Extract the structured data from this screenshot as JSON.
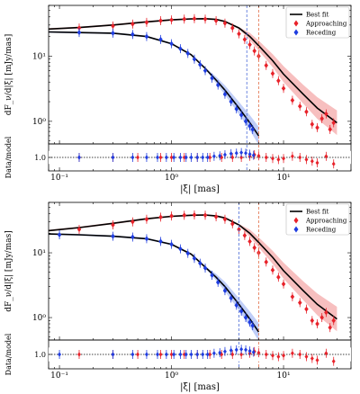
{
  "chart_data": [
    {
      "type": "scatter",
      "panel": "top",
      "xscale": "log",
      "yscale": "log",
      "xlim": [
        0.08,
        40
      ],
      "ylim": [
        0.45,
        60
      ],
      "ratio_ylim": [
        0.75,
        1.25
      ],
      "xlabel": "|ξ| [mas]",
      "ylabel": "dF_ν/d|ξ| [mJy/mas]",
      "ratio_ylabel": "Data/model",
      "x_ticks": [
        "10⁻¹",
        "10⁰",
        "10¹"
      ],
      "y_ticks": [
        "10⁰",
        "10¹"
      ],
      "ratio_ticks": [
        "1.0"
      ],
      "legend": {
        "position": "top-right",
        "entries": [
          "Best fit",
          "Approaching",
          "Receding"
        ]
      },
      "vlines": [
        {
          "x": 4.7,
          "color": "#4b6bd6",
          "style": "dashed"
        },
        {
          "x": 6.0,
          "color": "#e2704a",
          "style": "dashed"
        }
      ],
      "colors": {
        "best_fit": "#000000",
        "approaching": "#e8222a",
        "receding": "#1f3de0",
        "band_red": "#f08a8a",
        "band_blue": "#8da6f2"
      },
      "series": [
        {
          "name": "Approaching",
          "x": [
            0.15,
            0.3,
            0.45,
            0.6,
            0.8,
            1.0,
            1.3,
            1.6,
            2.0,
            2.5,
            3.0,
            3.5,
            4.0,
            4.5,
            5.0,
            5.5,
            6.0,
            7.0,
            8.0,
            9.0,
            10.0,
            12.0,
            14.0,
            16.0,
            18.0,
            20.0,
            22.0,
            24.0,
            26.0,
            28.0
          ],
          "y": [
            27.0,
            29.0,
            31.0,
            33.0,
            35.0,
            36.0,
            37.0,
            37.5,
            37.0,
            35.0,
            32.0,
            27.0,
            22.0,
            18.0,
            15.0,
            12.0,
            10.0,
            7.2,
            5.4,
            4.2,
            3.2,
            2.1,
            1.7,
            1.4,
            0.9,
            0.8,
            1.1,
            1.3,
            0.75,
            0.95
          ]
        },
        {
          "name": "Receding",
          "x": [
            0.15,
            0.3,
            0.45,
            0.6,
            0.8,
            1.0,
            1.2,
            1.4,
            1.6,
            1.8,
            2.0,
            2.3,
            2.6,
            3.0,
            3.4,
            3.8,
            4.2,
            4.6,
            5.0,
            5.3
          ],
          "y": [
            23.0,
            22.5,
            21.5,
            20.0,
            18.0,
            15.5,
            13.0,
            11.0,
            9.0,
            7.4,
            6.0,
            4.6,
            3.6,
            2.6,
            2.0,
            1.55,
            1.25,
            1.0,
            0.85,
            0.75
          ]
        },
        {
          "name": "Best fit (approaching)",
          "x": [
            0.08,
            0.15,
            0.3,
            0.6,
            1.0,
            1.5,
            2.0,
            2.5,
            3.0,
            4.0,
            5.0,
            6.0,
            8.0,
            10.0,
            15.0,
            20.0,
            30.0
          ],
          "y": [
            26.0,
            27.5,
            30.0,
            33.5,
            36.0,
            37.3,
            37.5,
            36.5,
            34.0,
            27.0,
            20.0,
            14.5,
            8.5,
            5.3,
            2.6,
            1.6,
            0.95
          ]
        },
        {
          "name": "Best fit (receding)",
          "x": [
            0.08,
            0.15,
            0.3,
            0.6,
            1.0,
            1.5,
            2.0,
            2.5,
            3.0,
            4.0,
            5.0,
            6.0
          ],
          "y": [
            23.5,
            23.0,
            22.5,
            20.0,
            15.5,
            10.5,
            6.5,
            4.3,
            3.0,
            1.6,
            0.95,
            0.6
          ]
        }
      ],
      "ratio": [
        {
          "name": "Approaching",
          "x": [
            0.15,
            0.3,
            0.5,
            0.8,
            1.0,
            1.3,
            1.7,
            2.2,
            2.8,
            3.5,
            4.2,
            5.0,
            5.5,
            6.0,
            7.0,
            8.0,
            9.0,
            10.0,
            12.0,
            14.0,
            16.0,
            18.0,
            20.0,
            24.0,
            28.0
          ],
          "y": [
            1.0,
            1.0,
            1.0,
            1.0,
            1.0,
            1.0,
            1.0,
            1.0,
            1.0,
            1.0,
            1.0,
            1.02,
            1.05,
            1.03,
            1.0,
            0.98,
            0.96,
            0.98,
            1.02,
            1.0,
            0.96,
            0.93,
            0.9,
            1.02,
            0.88
          ]
        },
        {
          "name": "Receding",
          "x": [
            0.15,
            0.3,
            0.45,
            0.6,
            0.75,
            0.9,
            1.05,
            1.2,
            1.35,
            1.5,
            1.7,
            1.9,
            2.1,
            2.4,
            2.7,
            3.0,
            3.4,
            3.8,
            4.2,
            4.6,
            5.0,
            5.4
          ],
          "y": [
            1.0,
            1.0,
            1.0,
            1.0,
            1.0,
            1.0,
            1.0,
            1.0,
            1.0,
            1.0,
            1.0,
            1.0,
            1.0,
            1.02,
            1.03,
            1.05,
            1.07,
            1.08,
            1.09,
            1.08,
            1.06,
            1.04
          ]
        }
      ]
    },
    {
      "type": "scatter",
      "panel": "bottom",
      "xscale": "log",
      "yscale": "log",
      "xlim": [
        0.08,
        40
      ],
      "ylim": [
        0.45,
        60
      ],
      "ratio_ylim": [
        0.75,
        1.25
      ],
      "xlabel": "|ξ| [mas]",
      "ylabel": "dF_ν/d|ξ| [mJy/mas]",
      "ratio_ylabel": "Data/model",
      "x_ticks": [
        "10⁻¹",
        "10⁰",
        "10¹"
      ],
      "y_ticks": [
        "10⁰",
        "10¹"
      ],
      "ratio_ticks": [
        "1.0"
      ],
      "legend": {
        "position": "top-right",
        "entries": [
          "Best fit",
          "Approaching",
          "Receding"
        ]
      },
      "vlines": [
        {
          "x": 4.0,
          "color": "#4b6bd6",
          "style": "dashed"
        },
        {
          "x": 6.0,
          "color": "#e2704a",
          "style": "dashed"
        }
      ],
      "colors": {
        "best_fit": "#000000",
        "approaching": "#e8222a",
        "receding": "#1f3de0",
        "band_red": "#f08a8a",
        "band_blue": "#8da6f2"
      },
      "series": [
        {
          "name": "Approaching",
          "x": [
            0.15,
            0.3,
            0.45,
            0.6,
            0.8,
            1.0,
            1.3,
            1.6,
            2.0,
            2.5,
            3.0,
            3.5,
            4.0,
            4.5,
            5.0,
            5.5,
            6.0,
            7.0,
            8.0,
            9.0,
            10.0,
            12.0,
            14.0,
            16.0,
            18.0,
            20.0,
            22.0,
            24.0,
            26.0,
            28.0
          ],
          "y": [
            23.0,
            27.0,
            30.0,
            33.0,
            35.5,
            37.0,
            38.0,
            38.5,
            38.0,
            36.0,
            33.0,
            28.0,
            23.0,
            18.5,
            15.0,
            12.0,
            10.0,
            7.2,
            5.4,
            4.2,
            3.3,
            2.1,
            1.7,
            1.35,
            0.9,
            0.8,
            1.0,
            1.2,
            0.7,
            0.9
          ]
        },
        {
          "name": "Receding",
          "x": [
            0.1,
            0.3,
            0.45,
            0.6,
            0.8,
            1.0,
            1.2,
            1.4,
            1.6,
            1.8,
            2.0,
            2.3,
            2.6,
            3.0,
            3.4,
            3.8,
            4.2,
            4.6,
            5.0,
            5.3
          ],
          "y": [
            19.0,
            18.0,
            17.5,
            16.5,
            15.0,
            13.5,
            11.5,
            9.8,
            8.2,
            6.9,
            5.8,
            4.5,
            3.5,
            2.6,
            2.0,
            1.55,
            1.25,
            1.0,
            0.85,
            0.75
          ]
        },
        {
          "name": "Best fit (approaching)",
          "x": [
            0.08,
            0.15,
            0.3,
            0.6,
            1.0,
            1.5,
            2.0,
            2.5,
            3.0,
            4.0,
            5.0,
            6.0,
            8.0,
            10.0,
            15.0,
            20.0,
            30.0
          ],
          "y": [
            22.0,
            24.5,
            28.5,
            33.5,
            36.5,
            38.0,
            38.3,
            37.0,
            34.5,
            27.0,
            20.0,
            14.5,
            8.5,
            5.3,
            2.6,
            1.6,
            0.95
          ]
        },
        {
          "name": "Best fit (receding)",
          "x": [
            0.08,
            0.15,
            0.3,
            0.6,
            1.0,
            1.5,
            2.0,
            2.5,
            3.0,
            4.0,
            5.0,
            6.0
          ],
          "y": [
            19.5,
            19.0,
            18.0,
            16.5,
            13.5,
            9.5,
            6.0,
            4.2,
            3.0,
            1.6,
            0.95,
            0.6
          ]
        }
      ],
      "ratio": [
        {
          "name": "Approaching",
          "x": [
            0.15,
            0.3,
            0.5,
            0.8,
            1.0,
            1.3,
            1.7,
            2.2,
            2.8,
            3.5,
            4.2,
            5.0,
            5.5,
            6.0,
            7.0,
            8.0,
            9.0,
            10.0,
            12.0,
            14.0,
            16.0,
            18.0,
            20.0,
            24.0,
            28.0
          ],
          "y": [
            1.0,
            1.0,
            1.0,
            1.0,
            1.0,
            1.0,
            1.0,
            1.0,
            1.0,
            1.0,
            1.0,
            1.02,
            1.05,
            1.03,
            1.0,
            0.98,
            0.96,
            0.98,
            1.02,
            1.0,
            0.96,
            0.93,
            0.9,
            1.02,
            0.88
          ]
        },
        {
          "name": "Receding",
          "x": [
            0.1,
            0.3,
            0.45,
            0.6,
            0.75,
            0.9,
            1.05,
            1.2,
            1.35,
            1.5,
            1.7,
            1.9,
            2.1,
            2.4,
            2.7,
            3.0,
            3.4,
            3.8,
            4.2,
            4.6,
            5.0,
            5.4
          ],
          "y": [
            1.0,
            1.0,
            1.0,
            1.0,
            1.0,
            1.0,
            1.0,
            1.0,
            1.0,
            1.0,
            1.0,
            1.0,
            1.0,
            1.02,
            1.03,
            1.05,
            1.07,
            1.08,
            1.09,
            1.08,
            1.06,
            1.04
          ]
        }
      ]
    }
  ]
}
